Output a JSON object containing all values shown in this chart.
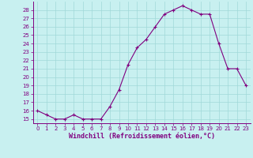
{
  "x": [
    0,
    1,
    2,
    3,
    4,
    5,
    6,
    7,
    8,
    9,
    10,
    11,
    12,
    13,
    14,
    15,
    16,
    17,
    18,
    19,
    20,
    21,
    22,
    23
  ],
  "y": [
    16.0,
    15.5,
    15.0,
    15.0,
    15.5,
    15.0,
    15.0,
    15.0,
    16.5,
    18.5,
    21.5,
    23.5,
    24.5,
    26.0,
    27.5,
    28.0,
    28.5,
    28.0,
    27.5,
    27.5,
    24.0,
    21.0,
    21.0,
    19.0
  ],
  "line_color": "#800080",
  "marker": "+",
  "markersize": 3,
  "linewidth": 0.8,
  "bg_color": "#c8f0f0",
  "grid_color": "#a0d8d8",
  "xlabel": "Windchill (Refroidissement éolien,°C)",
  "xlabel_fontsize": 6,
  "xlim": [
    -0.5,
    23.5
  ],
  "ylim": [
    14.5,
    29.0
  ],
  "yticks": [
    15,
    16,
    17,
    18,
    19,
    20,
    21,
    22,
    23,
    24,
    25,
    26,
    27,
    28
  ],
  "xticks": [
    0,
    1,
    2,
    3,
    4,
    5,
    6,
    7,
    8,
    9,
    10,
    11,
    12,
    13,
    14,
    15,
    16,
    17,
    18,
    19,
    20,
    21,
    22,
    23
  ],
  "tick_fontsize": 5,
  "tick_color": "#800080",
  "spine_color": "#800080"
}
